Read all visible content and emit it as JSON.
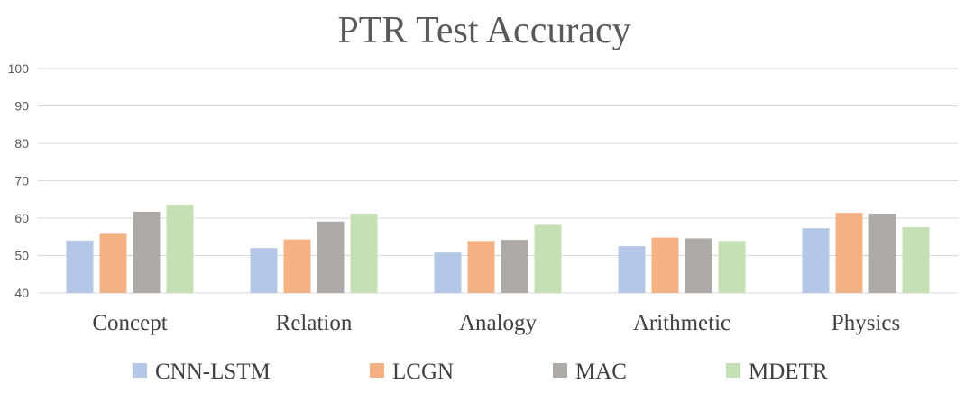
{
  "chart_data": {
    "type": "bar",
    "title": "PTR Test Accuracy",
    "xlabel": "",
    "ylabel": "",
    "ylim": [
      40,
      100
    ],
    "yticks": [
      40,
      50,
      60,
      70,
      80,
      90,
      100
    ],
    "grid": true,
    "legend_position": "bottom",
    "categories": [
      "Concept",
      "Relation",
      "Analogy",
      "Arithmetic",
      "Physics"
    ],
    "series": [
      {
        "name": "CNN-LSTM",
        "color": "#b4c7e7",
        "values": [
          54.0,
          52.0,
          50.8,
          52.5,
          57.3
        ]
      },
      {
        "name": "LCGN",
        "color": "#f4b183",
        "values": [
          55.8,
          54.3,
          53.9,
          54.8,
          61.4
        ]
      },
      {
        "name": "MAC",
        "color": "#aeaaaa",
        "values": [
          61.7,
          59.1,
          54.2,
          54.6,
          61.2
        ]
      },
      {
        "name": "MDETR",
        "color": "#c5e0b4",
        "values": [
          63.6,
          61.2,
          58.2,
          53.9,
          57.6
        ]
      }
    ]
  }
}
